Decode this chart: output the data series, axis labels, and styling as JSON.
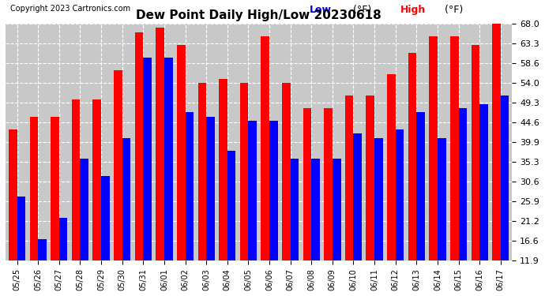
{
  "title": "Dew Point Daily High/Low 20230618",
  "copyright": "Copyright 2023 Cartronics.com",
  "legend_low": "Low",
  "legend_high": "High",
  "legend_unit": "(°F)",
  "bar_width": 0.4,
  "color_high": "#ff0000",
  "color_low": "#0000ff",
  "background_color": "#ffffff",
  "grid_color": "#cccccc",
  "plot_bg_color": "#c8c8c8",
  "yticks": [
    11.9,
    16.6,
    21.2,
    25.9,
    30.6,
    35.3,
    39.9,
    44.6,
    49.3,
    54.0,
    58.6,
    63.3,
    68.0
  ],
  "ylim": [
    11.9,
    68.0
  ],
  "dates": [
    "05/25",
    "05/26",
    "05/27",
    "05/28",
    "05/29",
    "05/30",
    "05/31",
    "06/01",
    "06/02",
    "06/03",
    "06/04",
    "06/05",
    "06/06",
    "06/07",
    "06/08",
    "06/09",
    "06/10",
    "06/11",
    "06/12",
    "06/13",
    "06/14",
    "06/15",
    "06/16",
    "06/17"
  ],
  "highs": [
    43.0,
    46.0,
    46.0,
    50.0,
    50.0,
    57.0,
    66.0,
    67.0,
    63.0,
    54.0,
    55.0,
    54.0,
    65.0,
    54.0,
    48.0,
    48.0,
    51.0,
    51.0,
    56.0,
    61.0,
    65.0,
    65.0,
    63.0,
    68.0
  ],
  "lows": [
    27.0,
    17.0,
    22.0,
    36.0,
    32.0,
    41.0,
    60.0,
    60.0,
    47.0,
    46.0,
    38.0,
    45.0,
    45.0,
    36.0,
    36.0,
    36.0,
    42.0,
    41.0,
    43.0,
    47.0,
    41.0,
    48.0,
    49.0,
    51.0
  ]
}
